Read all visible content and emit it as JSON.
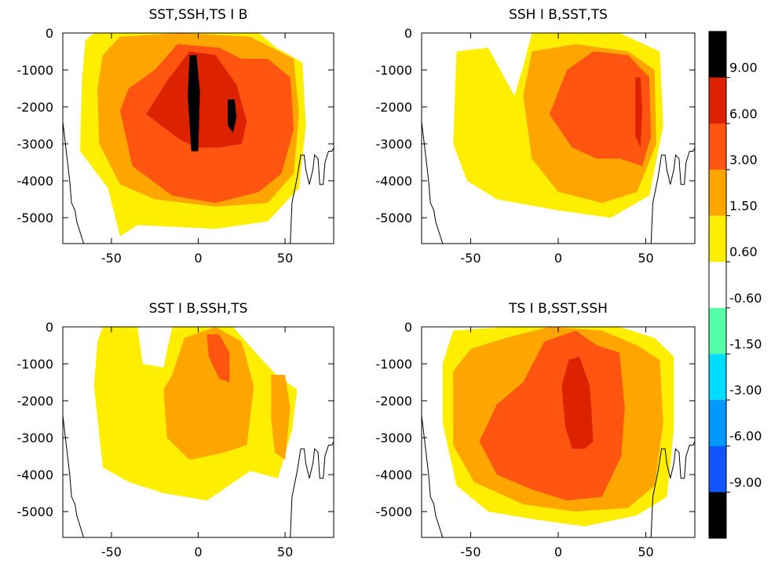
{
  "chart_data": [
    {
      "type": "heatmap",
      "title": "SST,SSH,TS   I   B",
      "xlabel": "",
      "ylabel": "",
      "xlim": [
        -78,
        78
      ],
      "ylim": [
        -5700,
        0
      ],
      "xticks": [
        -50,
        0,
        50
      ],
      "yticks": [
        0,
        -1000,
        -2000,
        -3000,
        -4000,
        -5000
      ],
      "xtick_labels": [
        "-50",
        "0",
        "50"
      ],
      "ytick_labels": [
        "0",
        "-1000",
        "-2000",
        "-3000",
        "-4000",
        "-5000"
      ],
      "contours": [
        {
          "level": 0.6,
          "points": [
            [
              -67,
              -1300
            ],
            [
              -65,
              -200
            ],
            [
              -60,
              0
            ],
            [
              35,
              0
            ],
            [
              45,
              -400
            ],
            [
              60,
              -800
            ],
            [
              62,
              -2500
            ],
            [
              58,
              -4200
            ],
            [
              40,
              -5100
            ],
            [
              10,
              -5300
            ],
            [
              -35,
              -5200
            ],
            [
              -45,
              -5500
            ],
            [
              -52,
              -4200
            ],
            [
              -68,
              -3200
            ]
          ]
        },
        {
          "level": 1.5,
          "points": [
            [
              -58,
              -1500
            ],
            [
              -55,
              -600
            ],
            [
              -45,
              -100
            ],
            [
              -10,
              0
            ],
            [
              30,
              -100
            ],
            [
              55,
              -700
            ],
            [
              58,
              -2200
            ],
            [
              55,
              -3800
            ],
            [
              40,
              -4600
            ],
            [
              10,
              -4700
            ],
            [
              -25,
              -4500
            ],
            [
              -45,
              -4100
            ],
            [
              -57,
              -3000
            ]
          ]
        },
        {
          "level": 3.0,
          "points": [
            [
              -45,
              -2100
            ],
            [
              -40,
              -1500
            ],
            [
              -25,
              -1000
            ],
            [
              -12,
              -300
            ],
            [
              12,
              -400
            ],
            [
              25,
              -700
            ],
            [
              40,
              -700
            ],
            [
              53,
              -1200
            ],
            [
              55,
              -2600
            ],
            [
              48,
              -3800
            ],
            [
              35,
              -4300
            ],
            [
              10,
              -4600
            ],
            [
              -15,
              -4400
            ],
            [
              -38,
              -3600
            ]
          ]
        },
        {
          "level": 6.0,
          "points": [
            [
              -30,
              -2200
            ],
            [
              -18,
              -1300
            ],
            [
              -5,
              -500
            ],
            [
              10,
              -600
            ],
            [
              22,
              -1400
            ],
            [
              28,
              -2400
            ],
            [
              25,
              -3000
            ],
            [
              12,
              -3100
            ],
            [
              0,
              -3100
            ],
            [
              -10,
              -2900
            ]
          ]
        },
        {
          "level": 9.0,
          "points": [
            [
              -5,
              -600
            ],
            [
              -1,
              -600
            ],
            [
              1,
              -1600
            ],
            [
              0,
              -3200
            ],
            [
              -4,
              -3200
            ],
            [
              -6,
              -1700
            ]
          ]
        },
        {
          "level": 9.0,
          "points": [
            [
              17,
              -1800
            ],
            [
              21,
              -1800
            ],
            [
              22,
              -2300
            ],
            [
              20,
              -2700
            ],
            [
              17,
              -2500
            ]
          ]
        }
      ]
    },
    {
      "type": "heatmap",
      "title": "SSH   I   B,SST,TS",
      "xlabel": "",
      "ylabel": "",
      "xlim": [
        -78,
        78
      ],
      "ylim": [
        -5700,
        0
      ],
      "xticks": [
        -50,
        0,
        50
      ],
      "yticks": [
        0,
        -1000,
        -2000,
        -3000,
        -4000,
        -5000
      ],
      "xtick_labels": [
        "-50",
        "0",
        "50"
      ],
      "ytick_labels": [
        "0",
        "-1000",
        "-2000",
        "-3000",
        "-4000",
        "-5000"
      ],
      "contours": [
        {
          "level": 0.6,
          "points": [
            [
              -60,
              -3000
            ],
            [
              -58,
              -500
            ],
            [
              -40,
              -400
            ],
            [
              -25,
              -1700
            ],
            [
              -20,
              -900
            ],
            [
              -15,
              0
            ],
            [
              35,
              0
            ],
            [
              58,
              -500
            ],
            [
              60,
              -2500
            ],
            [
              52,
              -4400
            ],
            [
              30,
              -5000
            ],
            [
              0,
              -4800
            ],
            [
              -35,
              -4500
            ],
            [
              -52,
              -4000
            ]
          ]
        },
        {
          "level": 1.5,
          "points": [
            [
              -20,
              -1700
            ],
            [
              -15,
              -500
            ],
            [
              10,
              -300
            ],
            [
              40,
              -500
            ],
            [
              55,
              -1000
            ],
            [
              56,
              -3000
            ],
            [
              45,
              -4300
            ],
            [
              25,
              -4600
            ],
            [
              0,
              -4300
            ],
            [
              -15,
              -3400
            ]
          ]
        },
        {
          "level": 3.0,
          "points": [
            [
              -5,
              -2200
            ],
            [
              5,
              -1000
            ],
            [
              20,
              -500
            ],
            [
              40,
              -600
            ],
            [
              52,
              -1200
            ],
            [
              53,
              -2800
            ],
            [
              48,
              -3600
            ],
            [
              35,
              -3400
            ],
            [
              22,
              -3400
            ],
            [
              8,
              -3100
            ]
          ]
        },
        {
          "level": 6.0,
          "points": [
            [
              44,
              -1200
            ],
            [
              47,
              -1200
            ],
            [
              48,
              -2100
            ],
            [
              47,
              -3100
            ],
            [
              44,
              -2800
            ]
          ]
        }
      ]
    },
    {
      "type": "heatmap",
      "title": "SST   I   B,SSH,TS",
      "xlabel": "",
      "ylabel": "",
      "xlim": [
        -78,
        78
      ],
      "ylim": [
        -5700,
        0
      ],
      "xticks": [
        -50,
        0,
        50
      ],
      "yticks": [
        0,
        -1000,
        -2000,
        -3000,
        -4000,
        -5000
      ],
      "xtick_labels": [
        "-50",
        "0",
        "50"
      ],
      "ytick_labels": [
        "0",
        "-1000",
        "-2000",
        "-3000",
        "-4000",
        "-5000"
      ],
      "contours": [
        {
          "level": 0.6,
          "points": [
            [
              -60,
              -1600
            ],
            [
              -58,
              -400
            ],
            [
              -55,
              0
            ],
            [
              -35,
              0
            ],
            [
              -32,
              -1000
            ],
            [
              -20,
              -1100
            ],
            [
              -15,
              0
            ],
            [
              20,
              0
            ],
            [
              35,
              -800
            ],
            [
              45,
              -1300
            ],
            [
              57,
              -1700
            ],
            [
              54,
              -2800
            ],
            [
              46,
              -4100
            ],
            [
              30,
              -3900
            ],
            [
              5,
              -4700
            ],
            [
              -20,
              -4500
            ],
            [
              -40,
              -4200
            ],
            [
              -55,
              -3800
            ]
          ]
        },
        {
          "level": 1.5,
          "points": [
            [
              -20,
              -1700
            ],
            [
              -15,
              -1300
            ],
            [
              -8,
              -300
            ],
            [
              10,
              0
            ],
            [
              25,
              -400
            ],
            [
              32,
              -1600
            ],
            [
              28,
              -3200
            ],
            [
              15,
              -3400
            ],
            [
              -5,
              -3600
            ],
            [
              -18,
              -3000
            ]
          ]
        },
        {
          "level": 3.0,
          "points": [
            [
              5,
              -200
            ],
            [
              12,
              -200
            ],
            [
              18,
              -700
            ],
            [
              18,
              -1500
            ],
            [
              12,
              -1400
            ],
            [
              6,
              -800
            ]
          ]
        },
        {
          "level": 1.5,
          "points": [
            [
              42,
              -1300
            ],
            [
              50,
              -1300
            ],
            [
              53,
              -2200
            ],
            [
              50,
              -3600
            ],
            [
              44,
              -3400
            ],
            [
              42,
              -2500
            ]
          ]
        }
      ]
    },
    {
      "type": "heatmap",
      "title": "TS   I   B,SST,SSH",
      "xlabel": "",
      "ylabel": "",
      "xlim": [
        -78,
        78
      ],
      "ylim": [
        -5700,
        0
      ],
      "xticks": [
        -50,
        0,
        50
      ],
      "yticks": [
        0,
        -1000,
        -2000,
        -3000,
        -4000,
        -5000
      ],
      "xtick_labels": [
        "-50",
        "0",
        "50"
      ],
      "ytick_labels": [
        "0",
        "-1000",
        "-2000",
        "-3000",
        "-4000",
        "-5000"
      ],
      "contours": [
        {
          "level": 0.6,
          "points": [
            [
              -66,
              -1000
            ],
            [
              -60,
              -100
            ],
            [
              -30,
              0
            ],
            [
              35,
              0
            ],
            [
              55,
              -300
            ],
            [
              66,
              -800
            ],
            [
              66,
              -2800
            ],
            [
              62,
              -4600
            ],
            [
              45,
              -5100
            ],
            [
              15,
              -5400
            ],
            [
              -15,
              -5200
            ],
            [
              -40,
              -5000
            ],
            [
              -58,
              -4300
            ],
            [
              -66,
              -2600
            ]
          ]
        },
        {
          "level": 1.5,
          "points": [
            [
              -60,
              -1200
            ],
            [
              -50,
              -600
            ],
            [
              -30,
              -300
            ],
            [
              -5,
              0
            ],
            [
              25,
              -100
            ],
            [
              45,
              -500
            ],
            [
              58,
              -900
            ],
            [
              60,
              -2600
            ],
            [
              55,
              -4300
            ],
            [
              40,
              -4900
            ],
            [
              10,
              -5000
            ],
            [
              -20,
              -4800
            ],
            [
              -48,
              -4200
            ],
            [
              -60,
              -3200
            ]
          ]
        },
        {
          "level": 3.0,
          "points": [
            [
              -45,
              -3100
            ],
            [
              -35,
              -2100
            ],
            [
              -20,
              -1500
            ],
            [
              -8,
              -400
            ],
            [
              10,
              -100
            ],
            [
              22,
              -500
            ],
            [
              35,
              -700
            ],
            [
              38,
              -2200
            ],
            [
              36,
              -3500
            ],
            [
              25,
              -4600
            ],
            [
              5,
              -4700
            ],
            [
              -15,
              -4400
            ],
            [
              -35,
              -4000
            ]
          ]
        },
        {
          "level": 6.0,
          "points": [
            [
              2,
              -1600
            ],
            [
              6,
              -900
            ],
            [
              12,
              -800
            ],
            [
              18,
              -1600
            ],
            [
              20,
              -3100
            ],
            [
              15,
              -3300
            ],
            [
              8,
              -3300
            ],
            [
              4,
              -2700
            ]
          ]
        }
      ]
    }
  ],
  "colorbar": {
    "levels": [
      "9.00",
      "6.00",
      "3.00",
      "1.50",
      "0.60",
      "-0.60",
      "-1.50",
      "-3.00",
      "-6.00",
      "-9.00"
    ],
    "colors_top_to_bottom": [
      "#000000",
      "#dd2200",
      "#ff5511",
      "#ffa500",
      "#ffee00",
      "#ffffff",
      "#55ffaa",
      "#00ddff",
      "#0099ff",
      "#1155ff",
      "#000000"
    ]
  },
  "bathymetry_outline": {
    "color": "#000000",
    "left": [
      [
        -78,
        -2400
      ],
      [
        -76,
        -3200
      ],
      [
        -74,
        -4000
      ],
      [
        -73,
        -4600
      ],
      [
        -71,
        -4800
      ],
      [
        -70,
        -5100
      ],
      [
        -68,
        -5400
      ],
      [
        -66,
        -5700
      ]
    ],
    "right": [
      [
        53,
        -5700
      ],
      [
        54,
        -4600
      ],
      [
        57,
        -3900
      ],
      [
        59,
        -3300
      ],
      [
        61,
        -3300
      ],
      [
        62,
        -3700
      ],
      [
        64,
        -4100
      ],
      [
        66,
        -3700
      ],
      [
        67,
        -3300
      ],
      [
        69,
        -3400
      ],
      [
        70,
        -4100
      ],
      [
        72,
        -4100
      ],
      [
        73,
        -3500
      ],
      [
        75,
        -3200
      ],
      [
        77,
        -3200
      ],
      [
        78,
        -3100
      ]
    ]
  }
}
